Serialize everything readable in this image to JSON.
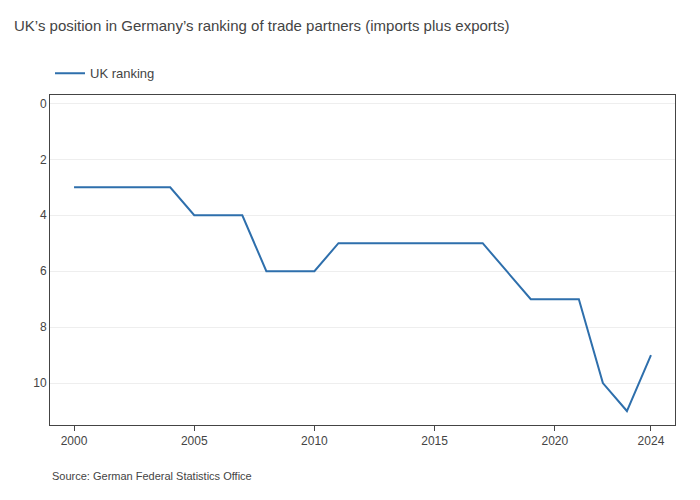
{
  "chart_data": {
    "type": "line",
    "title": "UK’s position in Germany’s ranking of trade partners (imports plus exports)",
    "annotations": [
      "Source: German Federal Statistics Office"
    ],
    "x": [
      2000,
      2004,
      2005,
      2007,
      2008,
      2010,
      2011,
      2017,
      2018,
      2019,
      2021,
      2022,
      2023,
      2024
    ],
    "series": [
      {
        "name": "UK ranking",
        "color": "#2e6fac",
        "values": [
          3,
          3,
          4,
          4,
          6,
          6,
          5,
          5,
          6,
          7,
          7,
          10,
          11,
          9
        ]
      }
    ],
    "xlim": [
      1999,
      2025
    ],
    "xticks": [
      2000,
      2005,
      2010,
      2015,
      2020,
      2024
    ],
    "ylim": [
      11.5,
      -0.3
    ],
    "yticks": [
      0,
      2,
      4,
      6,
      8,
      10
    ],
    "grid": true,
    "legend": "top"
  }
}
